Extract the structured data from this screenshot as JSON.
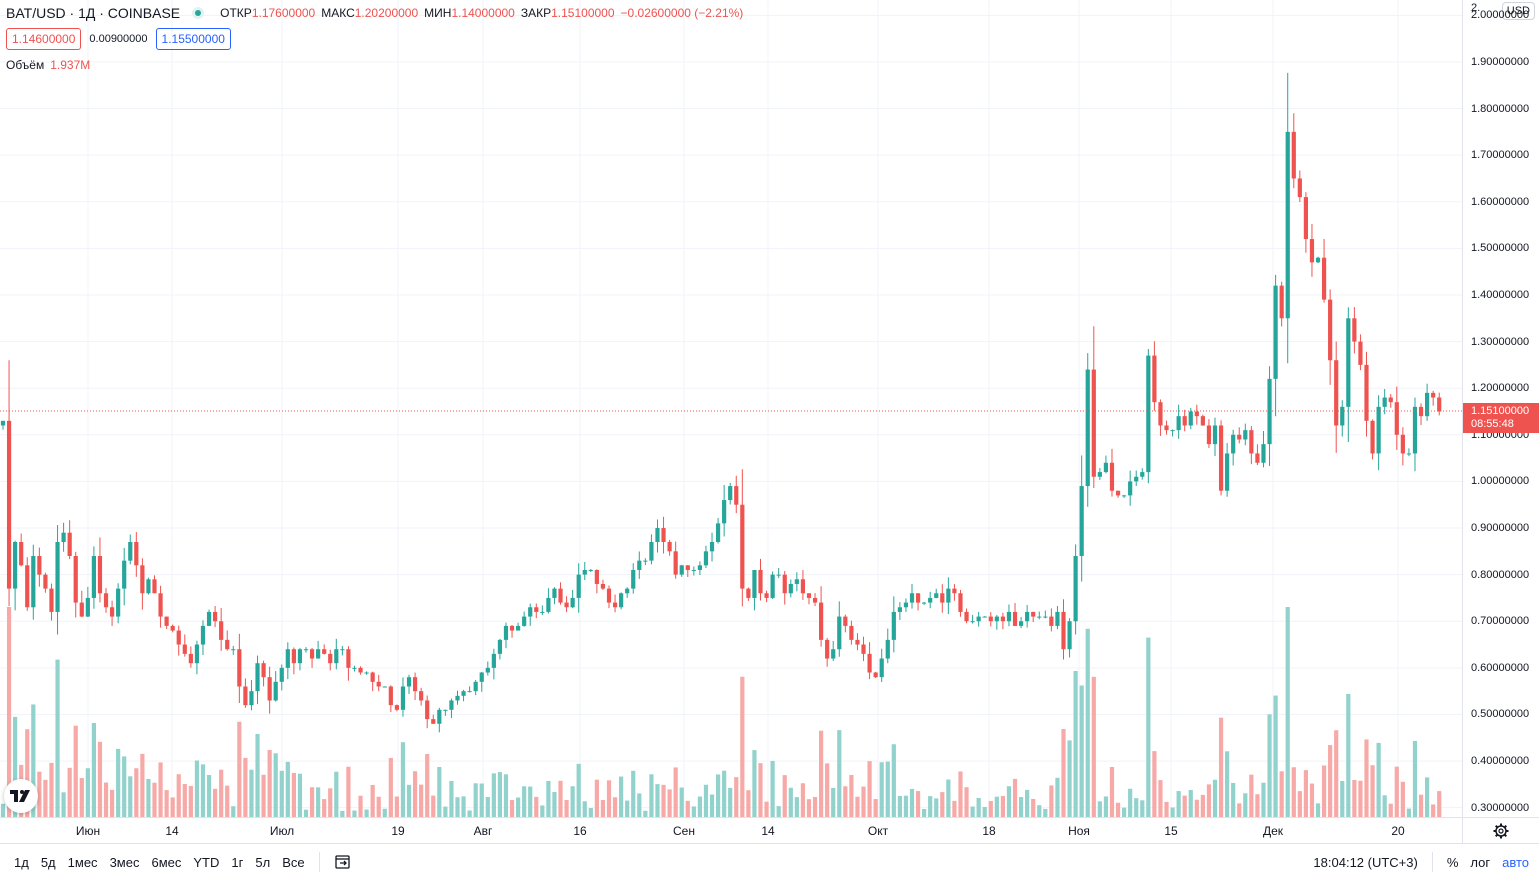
{
  "legend": {
    "symbol": "BAT/USD · 1Д · COINBASE",
    "open_label": "ОТКР",
    "open_value": "1.17600000",
    "high_label": "МАКС",
    "high_value": "1.20200000",
    "low_label": "МИН",
    "low_value": "1.14000000",
    "close_label": "ЗАКР",
    "close_value": "1.15100000",
    "change": "−0.02600000 (−2.21%)",
    "bid": "1.14600000",
    "spread": "0.00900000",
    "ask": "1.15500000",
    "volume_label": "Объём",
    "volume_value": "1.937M"
  },
  "price_scale": {
    "currency": "USD",
    "top_partial": "2.",
    "labels": [
      "2.00000000",
      "1.90000000",
      "1.80000000",
      "1.70000000",
      "1.60000000",
      "1.50000000",
      "1.40000000",
      "1.30000000",
      "1.20000000",
      "1.10000000",
      "1.00000000",
      "0.90000000",
      "0.80000000",
      "0.70000000",
      "0.60000000",
      "0.50000000",
      "0.40000000",
      "0.30000000"
    ],
    "last_price": "1.15100000",
    "countdown": "08:55:48"
  },
  "time_axis": {
    "labels": [
      "Июн",
      "14",
      "Июл",
      "19",
      "Авг",
      "16",
      "Сен",
      "14",
      "Окт",
      "18",
      "Ноя",
      "15",
      "Дек",
      "20"
    ]
  },
  "toolbar": {
    "ranges": [
      "1д",
      "5д",
      "1мес",
      "3мес",
      "6мес",
      "YTD",
      "1г",
      "5л",
      "Все"
    ],
    "clock": "18:04:12 (UTC+3)",
    "percent": "%",
    "log": "лог",
    "auto": "авто"
  },
  "colors": {
    "up": "#26a69a",
    "down": "#ef5350",
    "up_volume": "#92d2cc",
    "down_volume": "#f7a9a7",
    "ask": "#2962ff"
  },
  "chart_data": {
    "type": "candlestick",
    "series_name": "BAT/USD",
    "period": "1Д",
    "y_range": [
      0.28,
      2.02
    ],
    "closes": [
      1.13,
      0.77,
      0.87,
      0.82,
      0.73,
      0.84,
      0.8,
      0.77,
      0.72,
      0.87,
      0.89,
      0.84,
      0.74,
      0.71,
      0.75,
      0.84,
      0.76,
      0.73,
      0.71,
      0.77,
      0.83,
      0.87,
      0.82,
      0.76,
      0.79,
      0.76,
      0.71,
      0.69,
      0.68,
      0.65,
      0.63,
      0.61,
      0.65,
      0.69,
      0.72,
      0.7,
      0.66,
      0.64,
      0.64,
      0.56,
      0.52,
      0.55,
      0.61,
      0.58,
      0.53,
      0.57,
      0.6,
      0.64,
      0.61,
      0.64,
      0.64,
      0.62,
      0.64,
      0.63,
      0.61,
      0.64,
      0.64,
      0.6,
      0.6,
      0.59,
      0.59,
      0.57,
      0.56,
      0.56,
      0.52,
      0.51,
      0.56,
      0.58,
      0.55,
      0.53,
      0.49,
      0.48,
      0.51,
      0.51,
      0.53,
      0.54,
      0.55,
      0.55,
      0.57,
      0.59,
      0.6,
      0.63,
      0.66,
      0.69,
      0.68,
      0.69,
      0.71,
      0.73,
      0.72,
      0.72,
      0.75,
      0.77,
      0.74,
      0.73,
      0.75,
      0.8,
      0.81,
      0.81,
      0.78,
      0.77,
      0.74,
      0.73,
      0.76,
      0.77,
      0.81,
      0.83,
      0.83,
      0.87,
      0.9,
      0.87,
      0.85,
      0.8,
      0.82,
      0.81,
      0.81,
      0.82,
      0.85,
      0.87,
      0.91,
      0.96,
      0.99,
      0.95,
      0.77,
      0.75,
      0.81,
      0.76,
      0.75,
      0.8,
      0.8,
      0.76,
      0.78,
      0.79,
      0.76,
      0.75,
      0.74,
      0.66,
      0.62,
      0.64,
      0.71,
      0.69,
      0.66,
      0.65,
      0.63,
      0.59,
      0.58,
      0.62,
      0.66,
      0.72,
      0.73,
      0.74,
      0.76,
      0.74,
      0.74,
      0.75,
      0.76,
      0.74,
      0.77,
      0.76,
      0.72,
      0.7,
      0.7,
      0.71,
      0.71,
      0.7,
      0.71,
      0.7,
      0.72,
      0.69,
      0.7,
      0.72,
      0.71,
      0.71,
      0.71,
      0.69,
      0.72,
      0.64,
      0.7,
      0.84,
      0.99,
      1.24,
      1.01,
      1.02,
      1.04,
      0.98,
      0.97,
      0.97,
      1.0,
      1.01,
      1.02,
      1.27,
      1.17,
      1.12,
      1.11,
      1.11,
      1.14,
      1.12,
      1.15,
      1.14,
      1.12,
      1.08,
      1.12,
      0.98,
      1.06,
      1.1,
      1.09,
      1.11,
      1.06,
      1.04,
      1.08,
      1.22,
      1.42,
      1.35,
      1.75,
      1.65,
      1.61,
      1.52,
      1.47,
      1.48,
      1.39,
      1.26,
      1.12,
      1.16,
      1.35,
      1.3,
      1.25,
      1.13,
      1.06,
      1.16,
      1.18,
      1.17,
      1.1,
      1.06,
      1.06,
      1.16,
      1.14,
      1.19,
      1.18,
      1.15
    ]
  }
}
